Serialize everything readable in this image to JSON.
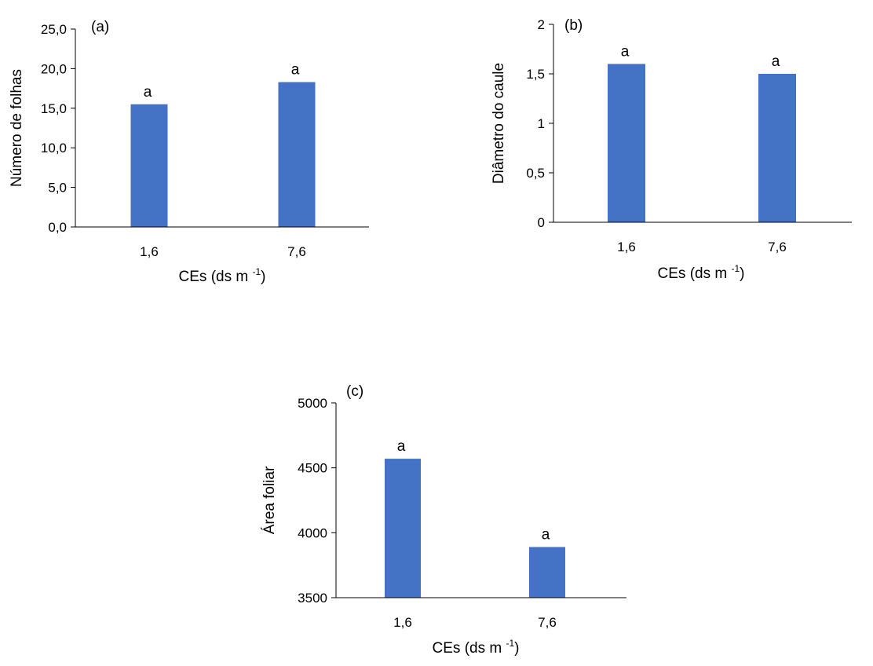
{
  "chart_data": [
    {
      "type": "bar",
      "panel_label": "(a)",
      "categories": [
        "1,6",
        "7,6"
      ],
      "values": [
        15.5,
        18.3
      ],
      "bar_labels": [
        "a",
        "a"
      ],
      "ylabel": "Número de folhas",
      "xlabel": "CEs (ds m",
      "xlabel_sup": "-1",
      "xlabel_end": ")",
      "ylim": [
        0,
        25
      ],
      "yticks": [
        0,
        5,
        10,
        15,
        20,
        25
      ],
      "ytick_labels": [
        "0,0",
        "5,0",
        "10,0",
        "15,0",
        "20,0",
        "25,0"
      ],
      "grid": false,
      "color": "#4472c4"
    },
    {
      "type": "bar",
      "panel_label": "(b)",
      "categories": [
        "1,6",
        "7,6"
      ],
      "values": [
        1.6,
        1.5
      ],
      "bar_labels": [
        "a",
        "a"
      ],
      "ylabel": "Diâmetro do caule",
      "xlabel": "CEs (ds m",
      "xlabel_sup": "-1",
      "xlabel_end": ")",
      "ylim": [
        0,
        2
      ],
      "yticks": [
        0,
        0.5,
        1,
        1.5,
        2
      ],
      "ytick_labels": [
        "0",
        "0,5",
        "1",
        "1,5",
        "2"
      ],
      "grid": false,
      "color": "#4472c4"
    },
    {
      "type": "bar",
      "panel_label": "(c)",
      "categories": [
        "1,6",
        "7,6"
      ],
      "values": [
        4570,
        3890
      ],
      "bar_labels": [
        "a",
        "a"
      ],
      "ylabel": "Área foliar",
      "xlabel": "CEs (ds m",
      "xlabel_sup": "-1",
      "xlabel_end": ")",
      "ylim": [
        3500,
        5000
      ],
      "yticks": [
        3500,
        4000,
        4500,
        5000
      ],
      "ytick_labels": [
        "3500",
        "4000",
        "4500",
        "5000"
      ],
      "grid": false,
      "color": "#4472c4"
    }
  ]
}
